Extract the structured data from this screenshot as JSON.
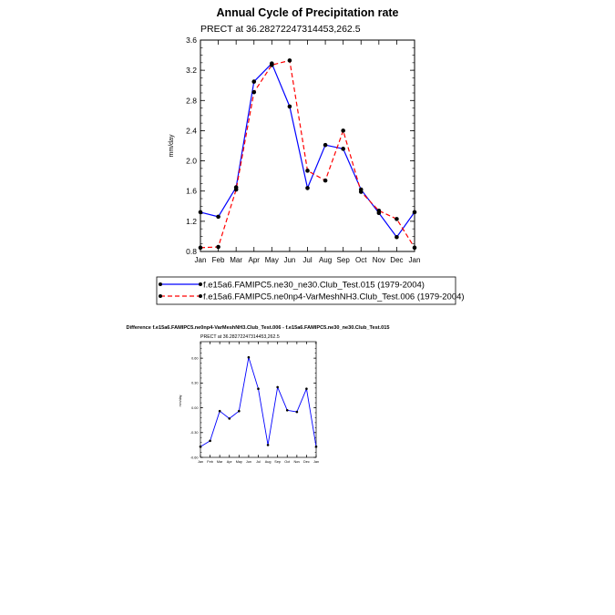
{
  "chart_data": [
    {
      "type": "line",
      "title": "Annual Cycle of Precipitation rate",
      "subtitle": "PRECT at 36.28272247314453,262.5",
      "xlabel": "",
      "ylabel": "mm/day",
      "ylim": [
        0.8,
        3.6
      ],
      "yticks": [
        "0.8",
        "1.2",
        "1.6",
        "2.0",
        "2.4",
        "2.8",
        "3.2",
        "3.6"
      ],
      "categories": [
        "Jan",
        "Feb",
        "Mar",
        "Apr",
        "May",
        "Jun",
        "Jul",
        "Aug",
        "Sep",
        "Oct",
        "Nov",
        "Dec",
        "Jan"
      ],
      "series": [
        {
          "name": "f.e15a6.FAMIPC5.ne30_ne30.Club_Test.015 (1979-2004)",
          "color": "#0000ff",
          "dash": "solid",
          "values": [
            1.32,
            1.26,
            1.65,
            3.05,
            3.29,
            2.72,
            1.64,
            2.21,
            2.16,
            1.62,
            1.31,
            0.99,
            1.32
          ]
        },
        {
          "name": "f.e15a6.FAMIPC5.ne0np4-VarMeshNH3.Club_Test.006 (1979-2004)",
          "color": "#ff0000",
          "dash": "dashed",
          "values": [
            0.85,
            0.86,
            1.62,
            2.91,
            3.27,
            3.33,
            1.87,
            1.74,
            2.4,
            1.59,
            1.34,
            1.23,
            0.85
          ]
        }
      ],
      "legend": "bottom"
    },
    {
      "type": "line",
      "title": "Difference f.e15a6.FAMIPC5.ne0np4-VarMeshNH3.Club_Test.006 - f.e15a6.FAMIPC5.ne30_ne30.Club_Test.015",
      "subtitle": "PRECT at 36.28272247314453,262.5",
      "xlabel": "",
      "ylabel": "mm/day",
      "ylim": [
        -0.6,
        0.8
      ],
      "yticks": [
        "-0.60",
        "-0.30",
        "0.00",
        "0.30",
        "0.60"
      ],
      "ytick_values": [
        -0.6,
        -0.3,
        0.0,
        0.3,
        0.6
      ],
      "categories": [
        "Jan",
        "Feb",
        "Mar",
        "Apr",
        "May",
        "Jun",
        "Jul",
        "Aug",
        "Sep",
        "Oct",
        "Nov",
        "Dec",
        "Jan"
      ],
      "series": [
        {
          "name": "difference",
          "color": "#0000ff",
          "dash": "solid",
          "values": [
            -0.47,
            -0.4,
            -0.04,
            -0.13,
            -0.04,
            0.61,
            0.23,
            -0.45,
            0.25,
            -0.03,
            -0.05,
            0.23,
            -0.47
          ]
        }
      ]
    }
  ]
}
